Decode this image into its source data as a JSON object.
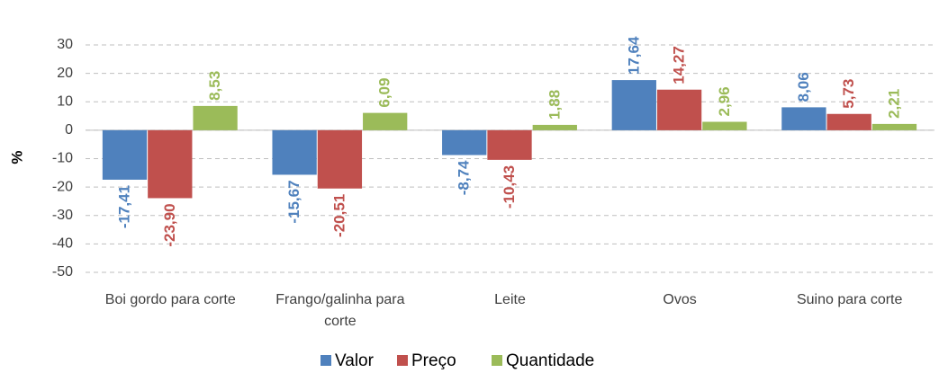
{
  "chart_data": {
    "type": "bar",
    "categories": [
      "Boi gordo para corte",
      "Frango/galinha para corte",
      "Leite",
      "Ovos",
      "Suino para corte"
    ],
    "series": [
      {
        "name": "Valor",
        "color": "#4f81bd",
        "values": [
          -17.41,
          -15.67,
          -8.74,
          17.64,
          8.06
        ],
        "value_labels": [
          "-17,41",
          "-15,67",
          "-8,74",
          "17,64",
          "8,06"
        ]
      },
      {
        "name": "Preço",
        "color": "#c0504d",
        "values": [
          -23.9,
          -20.51,
          -10.43,
          14.27,
          5.73
        ],
        "value_labels": [
          "-23,90",
          "-20,51",
          "-10,43",
          "14,27",
          "5,73"
        ]
      },
      {
        "name": "Quantidade",
        "color": "#9bbb59",
        "values": [
          8.53,
          6.09,
          1.88,
          2.96,
          2.21
        ],
        "value_labels": [
          "8,53",
          "6,09",
          "1,88",
          "2,96",
          "2,21"
        ]
      }
    ],
    "ylabel": "%",
    "ylim": [
      -50,
      30
    ],
    "yticks": [
      -50,
      -40,
      -30,
      -20,
      -10,
      0,
      10,
      20,
      30
    ],
    "grid": true,
    "legend": "bottom"
  }
}
